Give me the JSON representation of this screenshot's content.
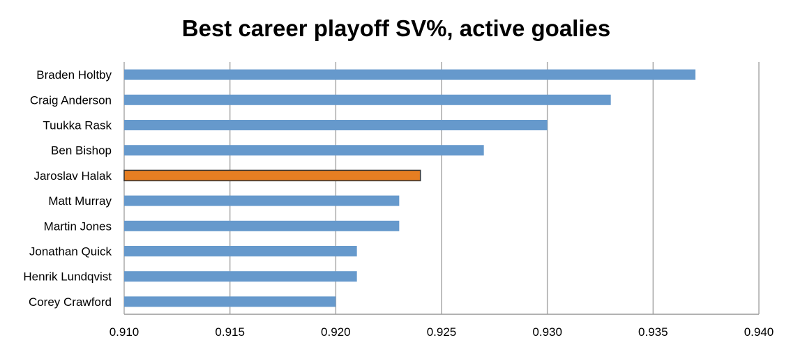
{
  "chart_data": {
    "type": "bar",
    "orientation": "horizontal",
    "title": "Best career playoff SV%, active goalies",
    "xlabel": "",
    "ylabel": "",
    "xlim": [
      0.91,
      0.94
    ],
    "x_ticks": [
      "0.910",
      "0.915",
      "0.920",
      "0.925",
      "0.930",
      "0.935",
      "0.940"
    ],
    "x_tick_values": [
      0.91,
      0.915,
      0.92,
      0.925,
      0.93,
      0.935,
      0.94
    ],
    "grid": "vertical",
    "legend": "none",
    "categories": [
      "Braden Holtby",
      "Craig Anderson",
      "Tuukka Rask",
      "Ben Bishop",
      "Jaroslav Halak",
      "Matt Murray",
      "Martin Jones",
      "Jonathan Quick",
      "Henrik Lundqvist",
      "Corey Crawford"
    ],
    "values": [
      0.937,
      0.933,
      0.93,
      0.927,
      0.924,
      0.923,
      0.923,
      0.921,
      0.921,
      0.92
    ],
    "highlight_index": 4,
    "colors": {
      "bar": "#6699cc",
      "highlight": "#e67e22",
      "highlight_border": "#333333",
      "grid": "#aaaaaa",
      "axis": "#999999"
    }
  }
}
